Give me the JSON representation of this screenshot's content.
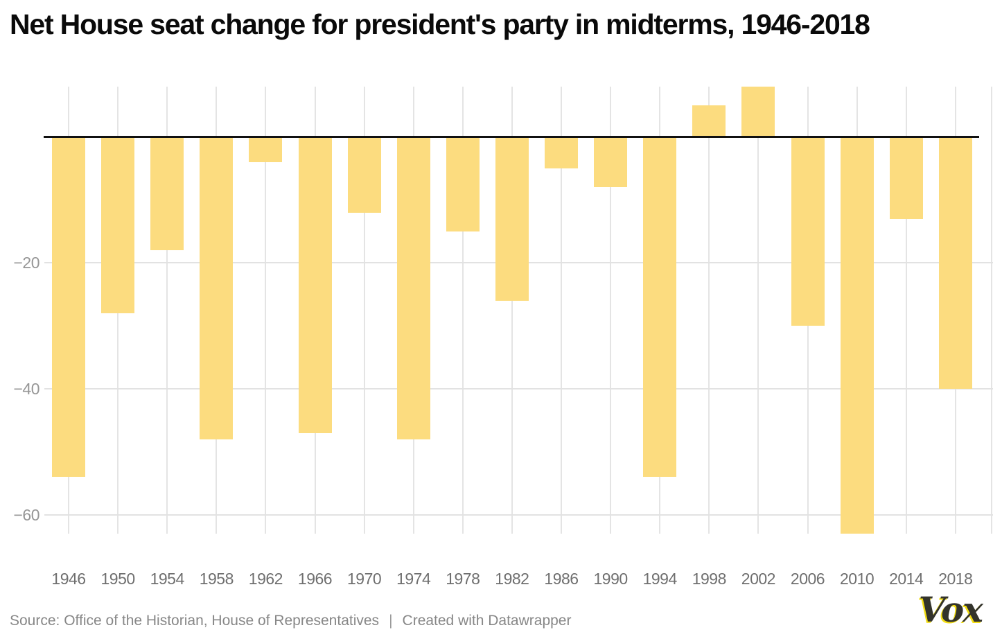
{
  "title": "Net House seat change for president's party in midterms, 1946-2018",
  "footer": {
    "source": "Source: Office of the Historian, House of Representatives",
    "separator": "|",
    "attribution": "Created with Datawrapper",
    "logo": "Vox"
  },
  "colors": {
    "background": "#FFFFFF",
    "bar": "#FCDC7F",
    "zero_line": "#111111",
    "gridline": "#E3E3E3",
    "ytick_label": "#969696",
    "xtick_label": "#6F6F6F",
    "title_text": "#0A0A0A",
    "source_text": "#878787",
    "logo_text": "#33332B",
    "logo_accent": "#F2DD13"
  },
  "chart_data": {
    "type": "bar",
    "title": "Net House seat change for president's party in midterms, 1946-2018",
    "categories": [
      "1946",
      "1950",
      "1954",
      "1958",
      "1962",
      "1966",
      "1970",
      "1974",
      "1978",
      "1982",
      "1986",
      "1990",
      "1994",
      "1998",
      "2002",
      "2006",
      "2010",
      "2014",
      "2018"
    ],
    "values": [
      -54,
      -28,
      -18,
      -48,
      -4,
      -47,
      -12,
      -48,
      -15,
      -26,
      -5,
      -8,
      -54,
      5,
      8,
      -30,
      -63,
      -13,
      -40
    ],
    "xlabel": "",
    "ylabel": "",
    "ylim": [
      -63,
      8
    ],
    "yticks": [
      -20,
      -40,
      -60
    ],
    "ytick_labels": [
      "−20",
      "−40",
      "−60"
    ],
    "grid": true,
    "zero_baseline": true,
    "legend": "none",
    "bar_color": "#FCDC7F"
  }
}
